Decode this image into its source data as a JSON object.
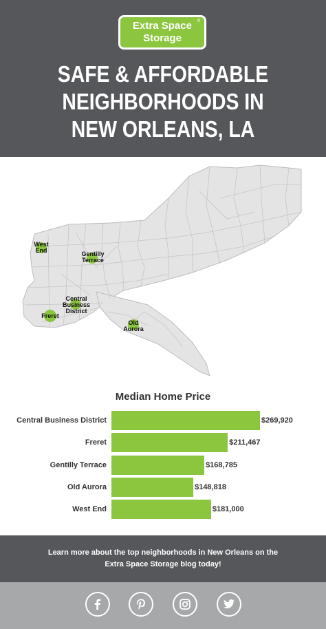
{
  "header": {
    "logo_line1": "Extra Space",
    "logo_line2": "Storage",
    "logo_mark": "®",
    "title_lines": [
      "SAFE & AFFORDABLE",
      "NEIGHBORHOODS IN",
      "NEW ORLEANS, LA"
    ]
  },
  "map": {
    "labels": {
      "west_end": [
        "West",
        "End"
      ],
      "gentilly": [
        "Gentilly",
        "Terrace"
      ],
      "cbd": [
        "Central",
        "Business",
        "District"
      ],
      "freret": [
        "Freret"
      ],
      "old_aurora": [
        "Old",
        "Aurora"
      ]
    },
    "colors": {
      "land": "#e4e4e4",
      "border": "#bdbdbd",
      "marker": "#8cc63f"
    }
  },
  "chart_data": {
    "type": "bar",
    "orientation": "horizontal",
    "title": "Median Home Price",
    "categories": [
      "Central Business District",
      "Freret",
      "Gentilly Terrace",
      "Old Aurora",
      "West End"
    ],
    "values": [
      269920,
      211467,
      168785,
      148818,
      181000
    ],
    "value_labels": [
      "$269,920",
      "$211,467",
      "$168,785",
      "$148,818",
      "$181,000"
    ],
    "xlim": [
      0,
      269920
    ],
    "grid": false,
    "legend": "none",
    "bar_color": "#8cc63f"
  },
  "cta": {
    "line1": "Learn more about the top neighborhoods in New Orleans on the",
    "line2": "Extra Space Storage blog today!"
  },
  "social": {
    "icons": [
      "facebook-icon",
      "pinterest-icon",
      "instagram-icon",
      "twitter-icon"
    ]
  },
  "colors": {
    "header_bg": "#56575b",
    "brand_green": "#8cc63f",
    "social_bg": "#a7a8aa"
  }
}
